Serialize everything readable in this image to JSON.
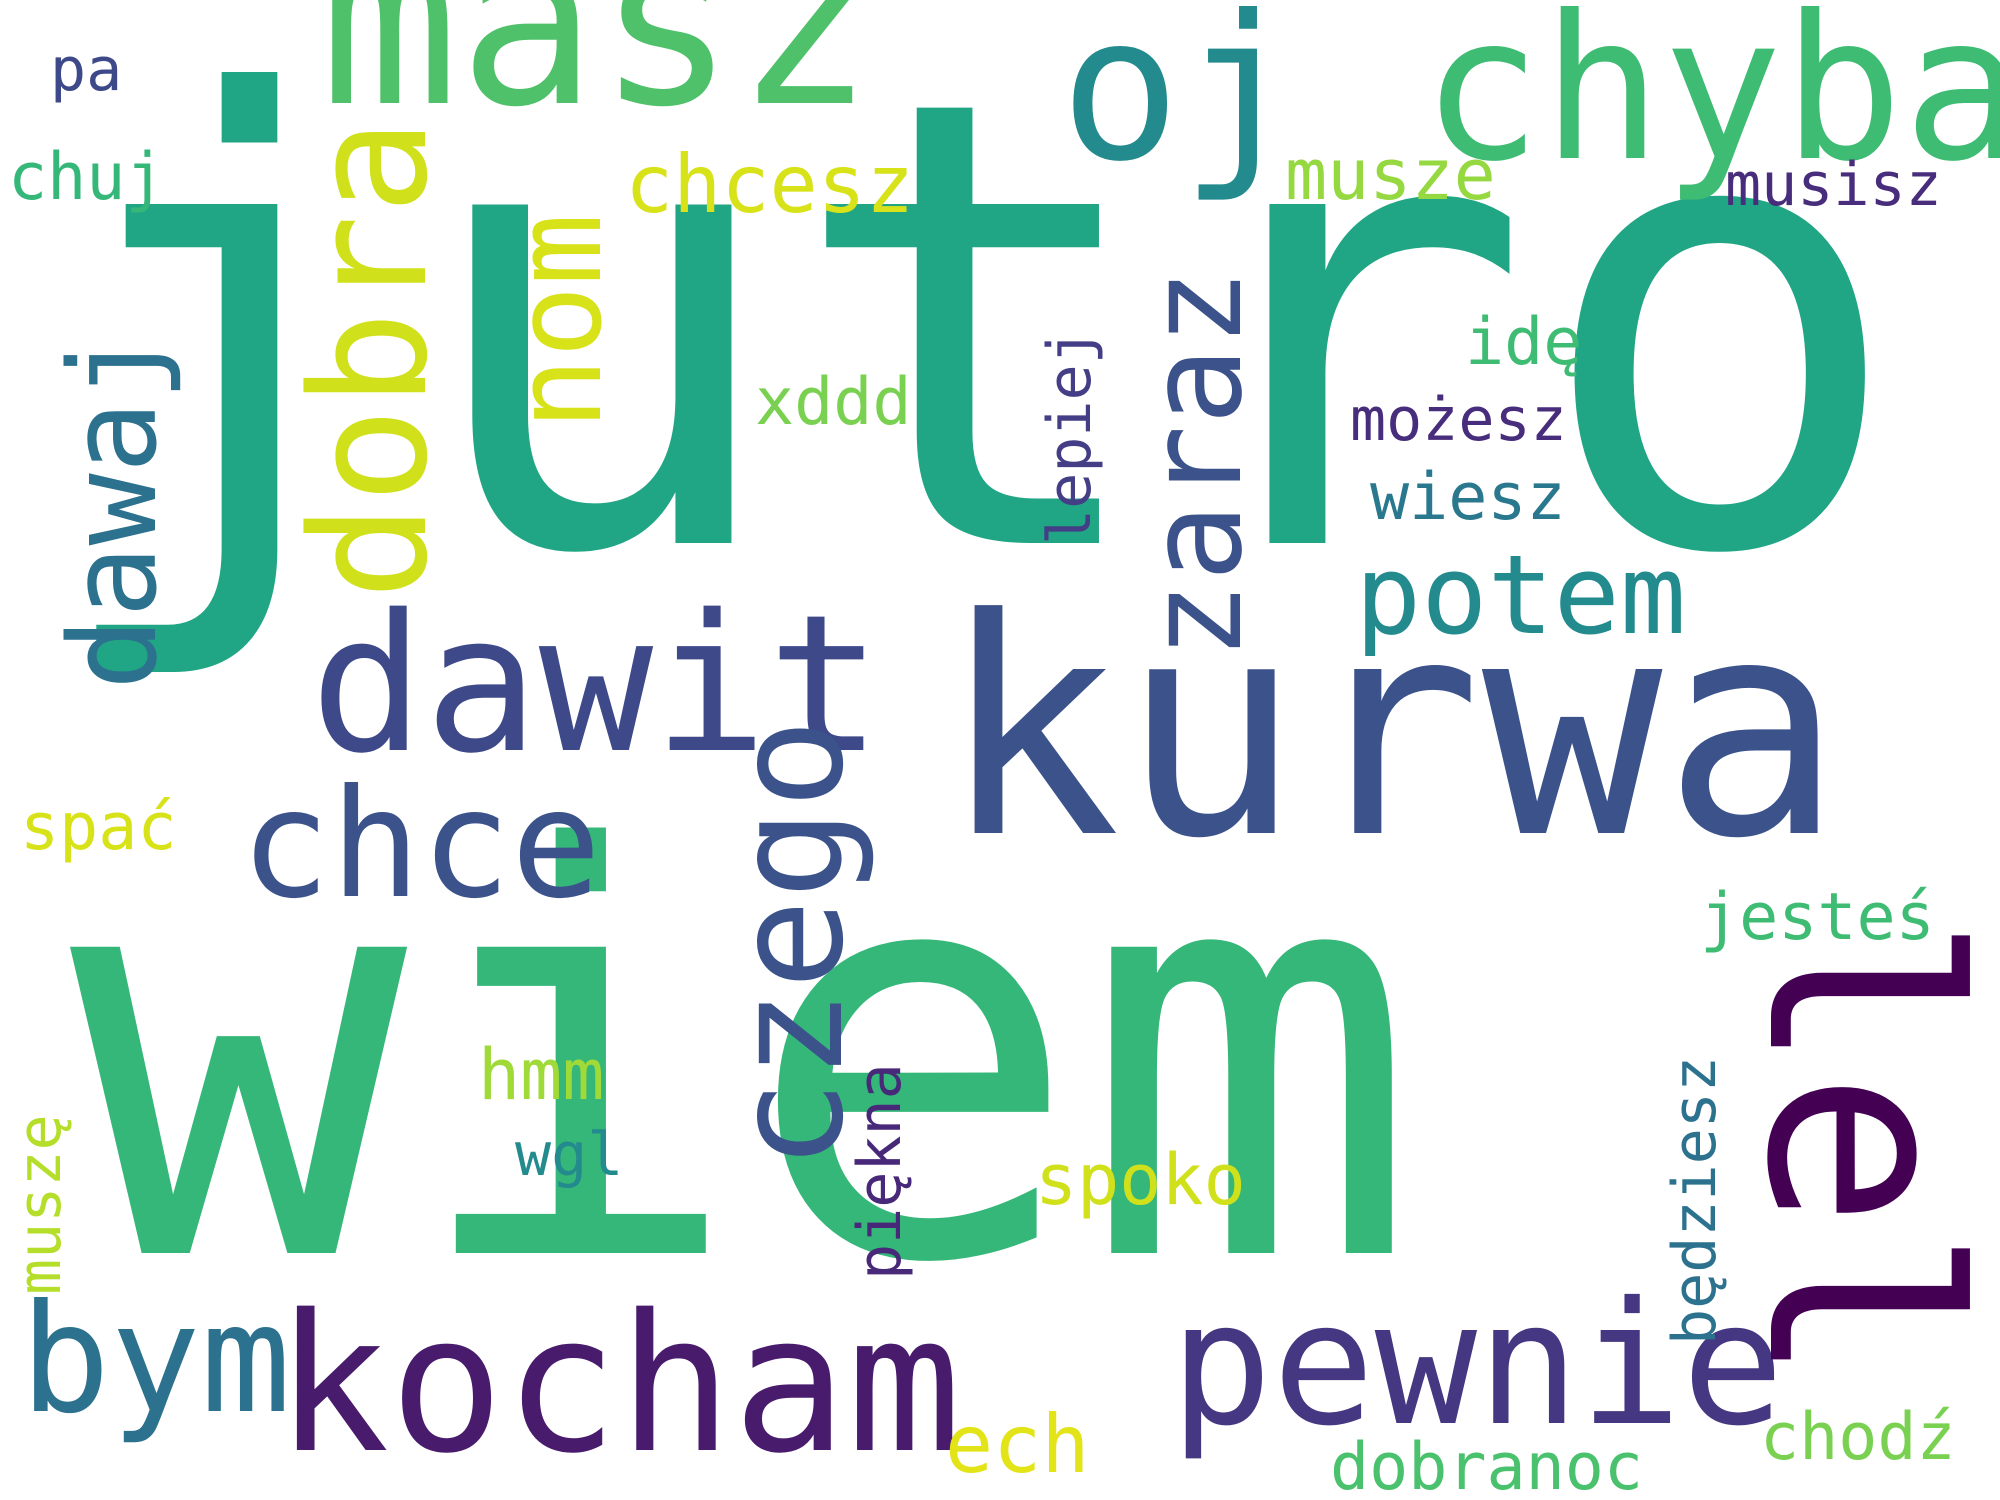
{
  "words": {
    "jutro": "jutro",
    "wiem": "wiem",
    "kurwa": "kurwa",
    "masz": "masz",
    "oj": "oj",
    "chyba": "chyba",
    "dawit": "dawit",
    "kocham": "kocham",
    "pewnie": "pewnie",
    "chce": "chce",
    "bym": "bym",
    "potem": "potem",
    "chcesz": "chcesz",
    "musze": "musze",
    "musisz": "musisz",
    "chuj": "chuj",
    "pa": "pa",
    "ide": "idę",
    "mozesz": "możesz",
    "wiesz": "wiesz",
    "xddd": "xddd",
    "spac": "spać",
    "jestes": "jesteś",
    "hmm": "hmm",
    "wgl": "wgl",
    "spoko": "spoko",
    "ech": "ech",
    "dobranoc": "dobranoc",
    "chodz": "chodź",
    "dawaj": "dawaj",
    "dobra": "dobra",
    "nom": "nom",
    "zaraz": "zaraz",
    "lepiej": "lepiej",
    "czego": "czego",
    "piekna": "piękna",
    "musze_diacritic": "muszę",
    "bedziesz": "będziesz",
    "lel": "lel"
  },
  "colors": {
    "background": "#ffffff",
    "palette": "viridis"
  }
}
